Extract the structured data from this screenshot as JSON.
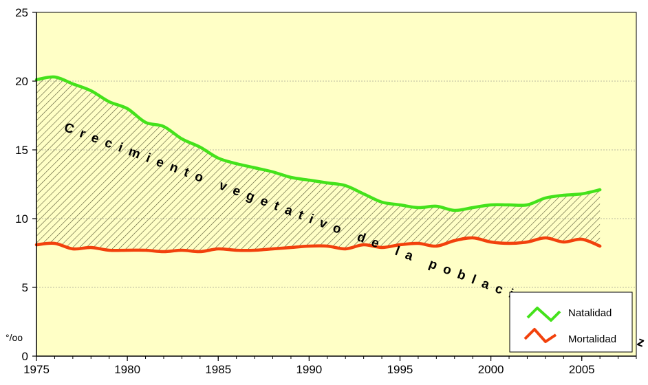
{
  "colors": {
    "plot_bg": "#ffffc6",
    "natalidad": "#44e21b",
    "mortalidad": "#f2410c",
    "hatch": "#555533",
    "grid": "#b8b8a0"
  },
  "chart_data": {
    "type": "line",
    "title": "",
    "ylabel": "°/oo",
    "xlabel": "",
    "xlim": [
      1975,
      2008
    ],
    "ylim": [
      0,
      25
    ],
    "x_ticks": [
      "1975",
      "1980",
      "1985",
      "1990",
      "1995",
      "2000",
      "2005"
    ],
    "y_ticks": [
      "0",
      "5",
      "10",
      "15",
      "20",
      "25"
    ],
    "grid": "horizontal",
    "legend_position": "bottom-right",
    "annotation": "Crecimiento vegetativo de la población andaluza",
    "x": [
      1975,
      1976,
      1977,
      1978,
      1979,
      1980,
      1981,
      1982,
      1983,
      1984,
      1985,
      1986,
      1987,
      1988,
      1989,
      1990,
      1991,
      1992,
      1993,
      1994,
      1995,
      1996,
      1997,
      1998,
      1999,
      2000,
      2001,
      2002,
      2003,
      2004,
      2005,
      2006
    ],
    "series": [
      {
        "name": "Natalidad",
        "values": [
          20.1,
          20.3,
          19.8,
          19.3,
          18.5,
          18.0,
          17.0,
          16.7,
          15.8,
          15.2,
          14.4,
          14.0,
          13.7,
          13.4,
          13.0,
          12.8,
          12.6,
          12.4,
          11.8,
          11.2,
          11.0,
          10.8,
          10.9,
          10.6,
          10.8,
          11.0,
          11.0,
          11.0,
          11.5,
          11.7,
          11.8,
          12.1
        ]
      },
      {
        "name": "Mortalidad",
        "values": [
          8.1,
          8.2,
          7.8,
          7.9,
          7.7,
          7.7,
          7.7,
          7.6,
          7.7,
          7.6,
          7.8,
          7.7,
          7.7,
          7.8,
          7.9,
          8.0,
          8.0,
          7.8,
          8.1,
          7.9,
          8.1,
          8.2,
          8.0,
          8.4,
          8.6,
          8.3,
          8.2,
          8.3,
          8.6,
          8.3,
          8.5,
          8.0
        ]
      }
    ]
  }
}
